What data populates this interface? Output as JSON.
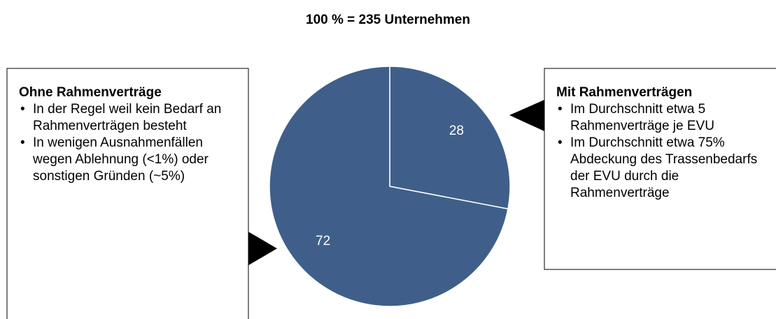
{
  "chart_data": {
    "type": "pie",
    "title": "100 % = 235 Unternehmen",
    "values": [
      28,
      72
    ],
    "color": "#3f5f8a",
    "annotations": [
      {
        "title": "Mit Rahmenverträgen",
        "bullets": [
          "Im Durchschnitt etwa 5 Rahmenverträge je EVU",
          "Im Durchschnitt etwa 75% Abdeckung des Trassenbedarfs der EVU durch die Rahmenverträge"
        ]
      },
      {
        "title": "Ohne Rahmenverträge",
        "bullets": [
          "In der Regel weil kein Bedarf an Rahmenverträgen besteht",
          "In wenigen Ausnahmenfällen wegen Ablehnung (<1%) oder sonstigen Gründen (~5%)"
        ]
      }
    ]
  }
}
